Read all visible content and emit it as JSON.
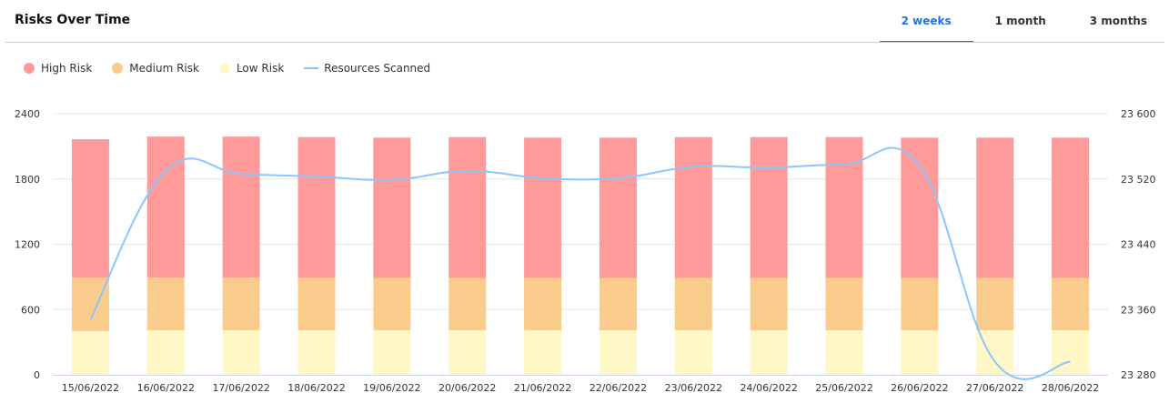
{
  "header": {
    "title": "Risks Over Time",
    "tabs": [
      {
        "label": "2 weeks",
        "active": true
      },
      {
        "label": "1 month",
        "active": false
      },
      {
        "label": "3 months",
        "active": false
      }
    ]
  },
  "colors": {
    "high": "#fe9a9a",
    "medium": "#f9cc8c",
    "low": "#fff8c6",
    "line": "#8ec6fb",
    "accent": "#1a73e8"
  },
  "chart_data": {
    "type": "bar",
    "stacked": true,
    "categories": [
      "15/06/2022",
      "16/06/2022",
      "17/06/2022",
      "18/06/2022",
      "19/06/2022",
      "20/06/2022",
      "21/06/2022",
      "22/06/2022",
      "23/06/2022",
      "24/06/2022",
      "25/06/2022",
      "26/06/2022",
      "27/06/2022",
      "28/06/2022"
    ],
    "series": [
      {
        "name": "Low Risk",
        "axis": "left",
        "values": [
          400,
          410,
          410,
          410,
          410,
          410,
          410,
          410,
          410,
          410,
          410,
          410,
          410,
          410
        ]
      },
      {
        "name": "Medium Risk",
        "axis": "left",
        "values": [
          495,
          485,
          485,
          480,
          480,
          480,
          480,
          480,
          480,
          480,
          480,
          480,
          480,
          480
        ]
      },
      {
        "name": "High Risk",
        "axis": "left",
        "values": [
          1270,
          1295,
          1295,
          1295,
          1290,
          1295,
          1290,
          1290,
          1295,
          1295,
          1295,
          1290,
          1290,
          1290
        ]
      },
      {
        "name": "Resources Scanned",
        "type": "line",
        "axis": "right",
        "values": [
          23348,
          23530,
          23526,
          23523,
          23519,
          23530,
          23521,
          23521,
          23535,
          23534,
          23538,
          23536,
          23296,
          23296
        ]
      }
    ],
    "left_axis": {
      "ylim": [
        0,
        2400
      ],
      "ticks": [
        "0",
        "600",
        "1200",
        "1800",
        "2400"
      ]
    },
    "right_axis": {
      "ylim": [
        23280,
        23600
      ],
      "ticks": [
        "23 280",
        "23 360",
        "23 440",
        "23 520",
        "23 600"
      ]
    },
    "grid": true,
    "legend": "top-left",
    "legend_order": [
      "High Risk",
      "Medium Risk",
      "Low Risk",
      "Resources Scanned"
    ]
  }
}
